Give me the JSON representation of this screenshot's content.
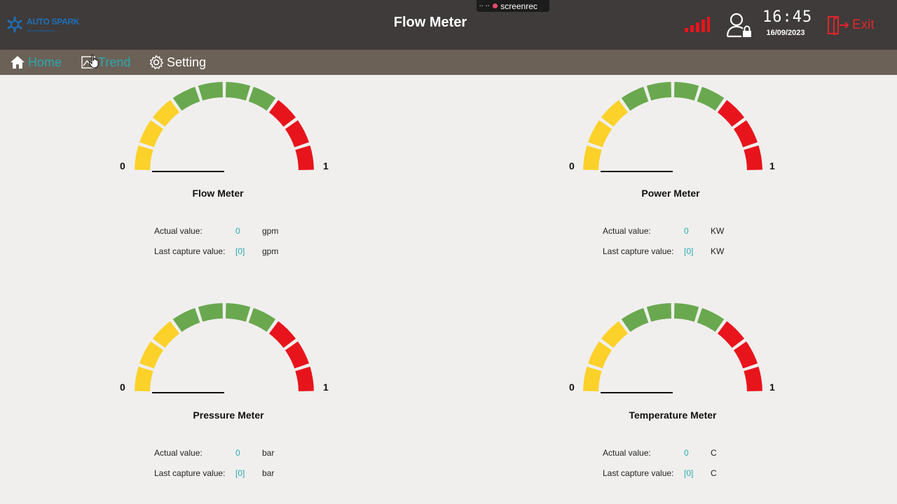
{
  "header": {
    "title": "Flow Meter",
    "logo_text": "AUTO SPARK",
    "recorder_label": "screenrec",
    "time": "16:45",
    "date": "16/09/2023",
    "exit_label": "Exit"
  },
  "nav": {
    "items": [
      {
        "label": "Home",
        "icon": "home-icon"
      },
      {
        "label": "Trend",
        "icon": "trend-icon"
      },
      {
        "label": "Setting",
        "icon": "gear-icon"
      }
    ]
  },
  "colors": {
    "yellow": "#fcd12a",
    "green": "#6aa84f",
    "red": "#e8141c",
    "accent": "#2aa9ae"
  },
  "gauges": [
    {
      "title": "Flow Meter",
      "min": "0",
      "max": "1",
      "actual_label": "Actual value:",
      "actual_value": "0",
      "actual_unit": "gpm",
      "last_label": "Last capture value:",
      "last_value": "[0]",
      "last_unit": "gpm"
    },
    {
      "title": "Power Meter",
      "min": "0",
      "max": "1",
      "actual_label": "Actual value:",
      "actual_value": "0",
      "actual_unit": "KW",
      "last_label": "Last capture value:",
      "last_value": "[0]",
      "last_unit": "KW"
    },
    {
      "title": "Pressure Meter",
      "min": "0",
      "max": "1",
      "actual_label": "Actual value:",
      "actual_value": "0",
      "actual_unit": "bar",
      "last_label": "Last capture value:",
      "last_value": "[0]",
      "last_unit": "bar"
    },
    {
      "title": "Temperature Meter",
      "min": "0",
      "max": "1",
      "actual_label": "Actual value:",
      "actual_value": "0",
      "actual_unit": "C",
      "last_label": "Last capture value:",
      "last_value": "[0]",
      "last_unit": "C"
    }
  ]
}
